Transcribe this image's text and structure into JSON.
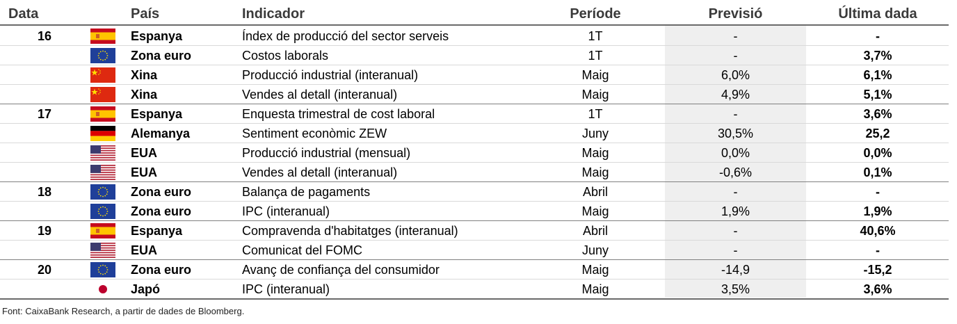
{
  "headers": {
    "date": "Data",
    "country": "País",
    "indicator": "Indicador",
    "period": "Període",
    "forecast": "Previsió",
    "last": "Última dada"
  },
  "rows": [
    {
      "date": "16",
      "flag": "spain-flag",
      "country": "Espanya",
      "indicator": "Índex de producció del sector serveis",
      "period": "1T",
      "forecast": "-",
      "last": "-"
    },
    {
      "date": "",
      "flag": "eu-flag",
      "country": "Zona euro",
      "indicator": "Costos laborals",
      "period": "1T",
      "forecast": "-",
      "last": "3,7%"
    },
    {
      "date": "",
      "flag": "china-flag",
      "country": "Xina",
      "indicator": "Producció industrial (interanual)",
      "period": "Maig",
      "forecast": "6,0%",
      "last": "6,1%"
    },
    {
      "date": "",
      "flag": "china-flag",
      "country": "Xina",
      "indicator": "Vendes al detall (interanual)",
      "period": "Maig",
      "forecast": "4,9%",
      "last": "5,1%"
    },
    {
      "date": "17",
      "flag": "spain-flag",
      "country": "Espanya",
      "indicator": "Enquesta trimestral de cost laboral",
      "period": "1T",
      "forecast": "-",
      "last": "3,6%"
    },
    {
      "date": "",
      "flag": "germany-flag",
      "country": "Alemanya",
      "indicator": "Sentiment econòmic ZEW",
      "period": "Juny",
      "forecast": "30,5%",
      "last": "25,2"
    },
    {
      "date": "",
      "flag": "usa-flag",
      "country": "EUA",
      "indicator": "Producció industrial (mensual)",
      "period": "Maig",
      "forecast": "0,0%",
      "last": "0,0%"
    },
    {
      "date": "",
      "flag": "usa-flag",
      "country": "EUA",
      "indicator": "Vendes al detall (interanual)",
      "period": "Maig",
      "forecast": "-0,6%",
      "last": "0,1%"
    },
    {
      "date": "18",
      "flag": "eu-flag",
      "country": "Zona euro",
      "indicator": "Balança de pagaments",
      "period": "Abril",
      "forecast": "-",
      "last": "-"
    },
    {
      "date": "",
      "flag": "eu-flag",
      "country": "Zona euro",
      "indicator": "IPC (interanual)",
      "period": "Maig",
      "forecast": "1,9%",
      "last": "1,9%"
    },
    {
      "date": "19",
      "flag": "spain-flag",
      "country": "Espanya",
      "indicator": "Compravenda d'habitatges (interanual)",
      "period": "Abril",
      "forecast": "-",
      "last": "40,6%"
    },
    {
      "date": "",
      "flag": "usa-flag",
      "country": "EUA",
      "indicator": "Comunicat del FOMC",
      "period": "Juny",
      "forecast": "-",
      "last": "-"
    },
    {
      "date": "20",
      "flag": "eu-flag",
      "country": "Zona euro",
      "indicator": "Avanç de confiança del consumidor",
      "period": "Maig",
      "forecast": "-14,9",
      "last": "-15,2"
    },
    {
      "date": "",
      "flag": "japan-flag",
      "country": "Japó",
      "indicator": "IPC (interanual)",
      "period": "Maig",
      "forecast": "3,5%",
      "last": "3,6%"
    }
  ],
  "source": "Font: CaixaBank Research, a partir de dades de Bloomberg."
}
